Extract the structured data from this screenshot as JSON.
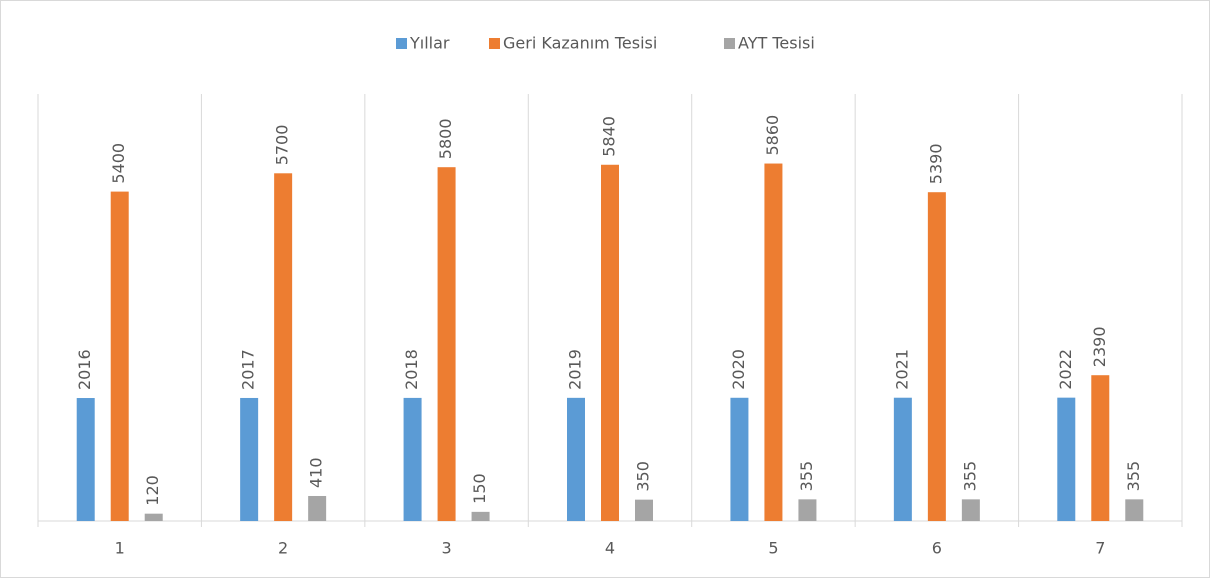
{
  "chart_data": {
    "type": "bar",
    "categories": [
      "1",
      "2",
      "3",
      "4",
      "5",
      "6",
      "7"
    ],
    "series": [
      {
        "name": "Yıllar",
        "color": "#5b9bd5",
        "values": [
          2016,
          2017,
          2018,
          2019,
          2020,
          2021,
          2022
        ]
      },
      {
        "name": "Geri Kazanım Tesisi",
        "color": "#ed7d31",
        "values": [
          5400,
          5700,
          5800,
          5840,
          5860,
          5390,
          2390
        ]
      },
      {
        "name": "AYT Tesisi",
        "color": "#a5a5a5",
        "values": [
          120,
          410,
          150,
          350,
          355,
          355,
          355
        ]
      }
    ],
    "ylim": [
      0,
      7000
    ],
    "legend": "top"
  }
}
